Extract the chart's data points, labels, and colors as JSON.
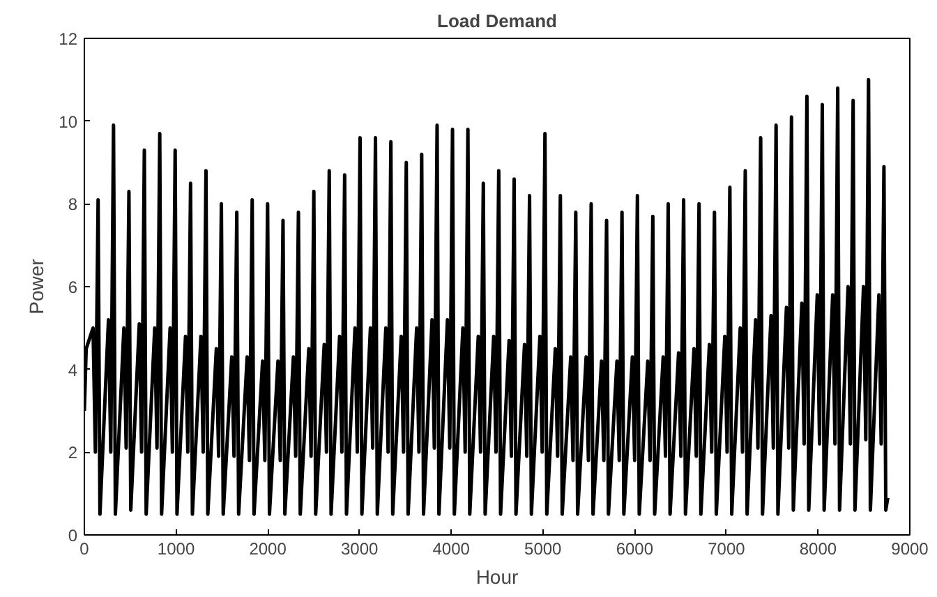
{
  "chart_data": {
    "type": "line",
    "title": "Load Demand",
    "xlabel": "Hour",
    "ylabel": "Power",
    "xlim": [
      0,
      9000
    ],
    "ylim": [
      0,
      12
    ],
    "xticks": [
      0,
      1000,
      2000,
      3000,
      4000,
      5000,
      6000,
      7000,
      8000,
      9000
    ],
    "yticks": [
      0,
      2,
      4,
      6,
      8,
      10,
      12
    ],
    "grid": false,
    "marker": "none",
    "line_style": "solid",
    "series": [
      {
        "color": "#000000",
        "x": [
          0,
          20,
          95,
          120,
          150,
          170,
          263,
          288,
          318,
          338,
          431,
          456,
          486,
          506,
          599,
          624,
          654,
          674,
          767,
          792,
          822,
          842,
          935,
          960,
          990,
          1010,
          1103,
          1128,
          1158,
          1178,
          1271,
          1296,
          1326,
          1346,
          1439,
          1464,
          1494,
          1514,
          1607,
          1632,
          1662,
          1682,
          1775,
          1800,
          1830,
          1850,
          1943,
          1968,
          1998,
          2018,
          2111,
          2136,
          2166,
          2186,
          2279,
          2304,
          2334,
          2354,
          2447,
          2472,
          2502,
          2522,
          2615,
          2640,
          2670,
          2690,
          2783,
          2808,
          2838,
          2858,
          2951,
          2976,
          3006,
          3026,
          3119,
          3144,
          3174,
          3194,
          3287,
          3312,
          3342,
          3362,
          3455,
          3480,
          3510,
          3530,
          3623,
          3648,
          3678,
          3698,
          3791,
          3816,
          3846,
          3866,
          3959,
          3984,
          4014,
          4034,
          4127,
          4152,
          4182,
          4202,
          4295,
          4320,
          4350,
          4370,
          4463,
          4488,
          4518,
          4538,
          4631,
          4656,
          4686,
          4706,
          4799,
          4824,
          4854,
          4874,
          4967,
          4992,
          5022,
          5042,
          5135,
          5160,
          5190,
          5210,
          5303,
          5328,
          5358,
          5378,
          5471,
          5496,
          5526,
          5546,
          5639,
          5664,
          5694,
          5714,
          5807,
          5832,
          5862,
          5882,
          5975,
          6000,
          6030,
          6050,
          6143,
          6168,
          6198,
          6218,
          6311,
          6336,
          6366,
          6386,
          6479,
          6504,
          6534,
          6554,
          6647,
          6672,
          6702,
          6722,
          6815,
          6840,
          6870,
          6890,
          6983,
          7008,
          7038,
          7058,
          7151,
          7176,
          7206,
          7226,
          7319,
          7344,
          7374,
          7394,
          7487,
          7512,
          7542,
          7562,
          7655,
          7680,
          7710,
          7730,
          7823,
          7848,
          7878,
          7898,
          7991,
          8016,
          8046,
          8066,
          8159,
          8184,
          8214,
          8234,
          8327,
          8352,
          8382,
          8402,
          8495,
          8520,
          8550,
          8570,
          8663,
          8688,
          8718,
          8738,
          8760
        ],
        "values": [
          3.0,
          4.5,
          5.0,
          2.0,
          8.1,
          0.5,
          5.2,
          2.0,
          9.9,
          0.5,
          5.0,
          2.1,
          8.3,
          0.6,
          5.1,
          2.0,
          9.3,
          0.5,
          5.0,
          2.1,
          9.7,
          0.5,
          5.0,
          2.0,
          9.3,
          0.5,
          4.8,
          2.0,
          8.5,
          0.5,
          4.8,
          2.0,
          8.8,
          0.5,
          4.5,
          1.9,
          8.0,
          0.5,
          4.3,
          1.9,
          7.8,
          0.5,
          4.3,
          1.8,
          8.1,
          0.5,
          4.2,
          1.8,
          8.0,
          0.5,
          4.2,
          1.8,
          7.6,
          0.5,
          4.3,
          1.9,
          7.8,
          0.5,
          4.5,
          1.9,
          8.3,
          0.5,
          4.6,
          2.0,
          8.8,
          0.5,
          4.8,
          2.0,
          8.7,
          0.5,
          5.0,
          2.0,
          9.6,
          0.5,
          5.0,
          2.1,
          9.6,
          0.5,
          5.0,
          2.0,
          9.5,
          0.5,
          4.8,
          2.0,
          9.0,
          0.5,
          5.0,
          2.0,
          9.2,
          0.5,
          5.2,
          2.1,
          9.9,
          0.5,
          5.2,
          2.1,
          9.8,
          0.5,
          5.0,
          2.0,
          9.8,
          0.5,
          4.8,
          2.0,
          8.5,
          0.5,
          4.8,
          2.0,
          8.8,
          0.5,
          4.7,
          1.9,
          8.6,
          0.5,
          4.6,
          1.9,
          8.2,
          0.5,
          4.8,
          2.0,
          9.7,
          0.5,
          4.5,
          1.9,
          8.2,
          0.5,
          4.3,
          1.8,
          7.8,
          0.5,
          4.3,
          1.8,
          8.0,
          0.5,
          4.2,
          1.8,
          7.6,
          0.5,
          4.2,
          1.8,
          7.8,
          0.5,
          4.3,
          1.8,
          8.2,
          0.5,
          4.2,
          1.8,
          7.7,
          0.5,
          4.3,
          1.9,
          8.0,
          0.5,
          4.4,
          1.9,
          8.1,
          0.5,
          4.5,
          1.9,
          8.0,
          0.5,
          4.6,
          2.0,
          7.8,
          0.5,
          4.8,
          2.0,
          8.4,
          0.5,
          5.0,
          2.0,
          8.8,
          0.5,
          5.2,
          2.1,
          9.6,
          0.5,
          5.3,
          2.1,
          9.9,
          0.5,
          5.5,
          2.1,
          10.1,
          0.6,
          5.6,
          2.2,
          10.6,
          0.6,
          5.8,
          2.2,
          10.4,
          0.6,
          5.8,
          2.2,
          10.8,
          0.6,
          6.0,
          2.2,
          10.5,
          0.6,
          6.0,
          2.3,
          11.0,
          0.6,
          5.8,
          2.2,
          8.9,
          0.6,
          0.9
        ]
      }
    ]
  }
}
